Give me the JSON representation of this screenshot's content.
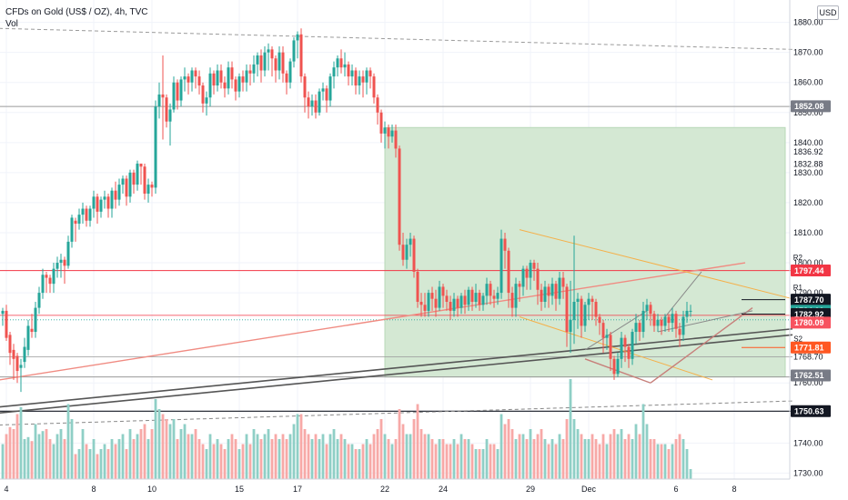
{
  "header": {
    "title": "CFDs on Gold (US$ / OZ), 4h, TVC",
    "indicator": "Vol",
    "currency": "USD"
  },
  "chart_data": {
    "type": "candlestick",
    "y_range": [
      1728,
      1882
    ],
    "volume_max": 100,
    "y_ticks": [
      1730,
      1740,
      1760,
      1790,
      1800,
      1810,
      1820,
      1830,
      1840,
      1850,
      1860,
      1870,
      1880
    ],
    "x_ticks": [
      {
        "label": "4",
        "i": 1
      },
      {
        "label": "8",
        "i": 25
      },
      {
        "label": "10",
        "i": 41
      },
      {
        "label": "15",
        "i": 65
      },
      {
        "label": "17",
        "i": 81
      },
      {
        "label": "22",
        "i": 105
      },
      {
        "label": "24",
        "i": 121
      },
      {
        "label": "29",
        "i": 145
      },
      {
        "label": "Dec",
        "i": 161
      },
      {
        "label": "6",
        "i": 185
      },
      {
        "label": "8",
        "i": 201
      }
    ],
    "candles": [
      [
        1783,
        1784,
        1779,
        1785,
        35
      ],
      [
        1784,
        1775,
        1774,
        1786,
        45
      ],
      [
        1776,
        1770,
        1766,
        1777,
        52
      ],
      [
        1771,
        1768,
        1761,
        1773,
        50
      ],
      [
        1769,
        1764,
        1760,
        1770,
        65
      ],
      [
        1765,
        1766,
        1757,
        1768,
        72
      ],
      [
        1767,
        1772,
        1765,
        1775,
        40
      ],
      [
        1771,
        1779,
        1769,
        1781,
        42
      ],
      [
        1778,
        1777,
        1775,
        1783,
        38
      ],
      [
        1777,
        1785,
        1775,
        1787,
        55
      ],
      [
        1785,
        1790,
        1783,
        1792,
        45
      ],
      [
        1790,
        1796,
        1788,
        1798,
        48
      ],
      [
        1796,
        1795,
        1790,
        1797,
        50
      ],
      [
        1795,
        1793,
        1790,
        1796,
        40
      ],
      [
        1793,
        1798,
        1790,
        1800,
        35
      ],
      [
        1798,
        1800,
        1795,
        1802,
        45
      ],
      [
        1800,
        1801,
        1795,
        1803,
        50
      ],
      [
        1801,
        1799,
        1793,
        1802,
        40
      ],
      [
        1799,
        1807,
        1798,
        1809,
        75
      ],
      [
        1807,
        1815,
        1805,
        1816,
        60
      ],
      [
        1814,
        1813,
        1807,
        1815,
        25
      ],
      [
        1813,
        1816,
        1811,
        1818,
        30
      ],
      [
        1816,
        1818,
        1813,
        1820,
        50
      ],
      [
        1818,
        1814,
        1812,
        1819,
        35
      ],
      [
        1814,
        1818,
        1812,
        1819,
        30
      ],
      [
        1818,
        1822,
        1815,
        1824,
        40
      ],
      [
        1822,
        1817,
        1813,
        1823,
        25
      ],
      [
        1817,
        1821,
        1815,
        1822,
        30
      ],
      [
        1821,
        1822,
        1818,
        1824,
        35
      ],
      [
        1822,
        1818,
        1815,
        1823,
        30
      ],
      [
        1818,
        1824,
        1815,
        1825,
        40
      ],
      [
        1824,
        1821,
        1818,
        1827,
        35
      ],
      [
        1821,
        1826,
        1819,
        1828,
        40
      ],
      [
        1826,
        1828,
        1823,
        1829,
        45
      ],
      [
        1828,
        1822,
        1819,
        1829,
        30
      ],
      [
        1822,
        1830,
        1820,
        1831,
        50
      ],
      [
        1830,
        1826,
        1823,
        1831,
        40
      ],
      [
        1826,
        1833,
        1824,
        1834,
        45
      ],
      [
        1833,
        1832,
        1826,
        1833,
        50
      ],
      [
        1832,
        1823,
        1821,
        1833,
        55
      ],
      [
        1823,
        1826,
        1820,
        1828,
        40
      ],
      [
        1826,
        1825,
        1822,
        1827,
        50
      ],
      [
        1825,
        1852,
        1823,
        1854,
        80
      ],
      [
        1852,
        1856,
        1848,
        1860,
        70
      ],
      [
        1856,
        1855,
        1841,
        1869,
        65
      ],
      [
        1855,
        1847,
        1845,
        1856,
        60
      ],
      [
        1847,
        1851,
        1839,
        1853,
        55
      ],
      [
        1851,
        1860,
        1850,
        1862,
        60
      ],
      [
        1860,
        1854,
        1851,
        1861,
        40
      ],
      [
        1854,
        1861,
        1852,
        1862,
        50
      ],
      [
        1861,
        1862,
        1857,
        1865,
        55
      ],
      [
        1862,
        1860,
        1856,
        1863,
        45
      ],
      [
        1860,
        1864,
        1857,
        1865,
        45
      ],
      [
        1864,
        1862,
        1858,
        1865,
        50
      ],
      [
        1862,
        1859,
        1856,
        1864,
        40
      ],
      [
        1859,
        1853,
        1850,
        1860,
        35
      ],
      [
        1853,
        1855,
        1849,
        1857,
        30
      ],
      [
        1855,
        1863,
        1852,
        1865,
        45
      ],
      [
        1863,
        1859,
        1856,
        1864,
        35
      ],
      [
        1859,
        1864,
        1857,
        1866,
        40
      ],
      [
        1864,
        1860,
        1858,
        1866,
        35
      ],
      [
        1860,
        1858,
        1855,
        1862,
        30
      ],
      [
        1858,
        1865,
        1856,
        1867,
        40
      ],
      [
        1865,
        1861,
        1858,
        1867,
        45
      ],
      [
        1861,
        1857,
        1854,
        1862,
        40
      ],
      [
        1857,
        1862,
        1855,
        1863,
        30
      ],
      [
        1862,
        1860,
        1857,
        1864,
        35
      ],
      [
        1860,
        1864,
        1857,
        1866,
        45
      ],
      [
        1864,
        1863,
        1859,
        1866,
        35
      ],
      [
        1863,
        1866,
        1860,
        1869,
        50
      ],
      [
        1866,
        1869,
        1862,
        1870,
        45
      ],
      [
        1869,
        1864,
        1860,
        1871,
        40
      ],
      [
        1864,
        1870,
        1862,
        1872,
        45
      ],
      [
        1870,
        1871,
        1864,
        1873,
        50
      ],
      [
        1871,
        1868,
        1862,
        1872,
        40
      ],
      [
        1868,
        1864,
        1860,
        1869,
        45
      ],
      [
        1864,
        1870,
        1861,
        1872,
        40
      ],
      [
        1870,
        1863,
        1860,
        1872,
        45
      ],
      [
        1863,
        1860,
        1856,
        1864,
        40
      ],
      [
        1860,
        1867,
        1858,
        1868,
        45
      ],
      [
        1867,
        1874,
        1865,
        1875,
        55
      ],
      [
        1874,
        1876,
        1868,
        1877,
        65
      ],
      [
        1876,
        1862,
        1860,
        1878,
        65
      ],
      [
        1862,
        1855,
        1850,
        1863,
        50
      ],
      [
        1855,
        1852,
        1848,
        1857,
        45
      ],
      [
        1852,
        1854,
        1849,
        1856,
        40
      ],
      [
        1854,
        1850,
        1848,
        1856,
        45
      ],
      [
        1850,
        1857,
        1849,
        1858,
        40
      ],
      [
        1857,
        1858,
        1854,
        1860,
        45
      ],
      [
        1858,
        1854,
        1850,
        1859,
        35
      ],
      [
        1854,
        1862,
        1852,
        1863,
        45
      ],
      [
        1862,
        1865,
        1858,
        1867,
        50
      ],
      [
        1865,
        1868,
        1862,
        1869,
        40
      ],
      [
        1868,
        1865,
        1863,
        1871,
        45
      ],
      [
        1865,
        1866,
        1862,
        1870,
        40
      ],
      [
        1866,
        1862,
        1859,
        1867,
        35
      ],
      [
        1862,
        1864,
        1859,
        1866,
        35
      ],
      [
        1864,
        1859,
        1856,
        1865,
        30
      ],
      [
        1859,
        1862,
        1856,
        1864,
        30
      ],
      [
        1862,
        1860,
        1855,
        1864,
        35
      ],
      [
        1860,
        1864,
        1856,
        1865,
        40
      ],
      [
        1864,
        1862,
        1858,
        1865,
        35
      ],
      [
        1862,
        1855,
        1853,
        1863,
        45
      ],
      [
        1855,
        1850,
        1846,
        1856,
        50
      ],
      [
        1850,
        1843,
        1840,
        1851,
        60
      ],
      [
        1843,
        1845,
        1838,
        1847,
        45
      ],
      [
        1845,
        1842,
        1838,
        1846,
        40
      ],
      [
        1842,
        1844,
        1840,
        1846,
        35
      ],
      [
        1844,
        1838,
        1835,
        1846,
        40
      ],
      [
        1838,
        1806,
        1804,
        1839,
        70
      ],
      [
        1806,
        1801,
        1799,
        1810,
        55
      ],
      [
        1801,
        1806,
        1798,
        1808,
        45
      ],
      [
        1806,
        1808,
        1802,
        1810,
        45
      ],
      [
        1808,
        1797,
        1795,
        1809,
        60
      ],
      [
        1797,
        1787,
        1785,
        1798,
        75
      ],
      [
        1787,
        1786,
        1782,
        1790,
        50
      ],
      [
        1786,
        1784,
        1782,
        1790,
        45
      ],
      [
        1784,
        1790,
        1782,
        1791,
        45
      ],
      [
        1790,
        1788,
        1784,
        1792,
        40
      ],
      [
        1788,
        1785,
        1782,
        1791,
        35
      ],
      [
        1785,
        1792,
        1784,
        1794,
        40
      ],
      [
        1792,
        1789,
        1785,
        1793,
        40
      ],
      [
        1789,
        1787,
        1784,
        1791,
        35
      ],
      [
        1787,
        1784,
        1781,
        1789,
        35
      ],
      [
        1784,
        1788,
        1782,
        1790,
        40
      ],
      [
        1788,
        1785,
        1782,
        1789,
        35
      ],
      [
        1785,
        1789,
        1783,
        1790,
        45
      ],
      [
        1789,
        1786,
        1783,
        1791,
        40
      ],
      [
        1786,
        1791,
        1784,
        1792,
        40
      ],
      [
        1791,
        1787,
        1784,
        1792,
        35
      ],
      [
        1787,
        1790,
        1785,
        1793,
        30
      ],
      [
        1790,
        1786,
        1784,
        1791,
        30
      ],
      [
        1786,
        1789,
        1784,
        1790,
        30
      ],
      [
        1789,
        1793,
        1786,
        1795,
        40
      ],
      [
        1793,
        1789,
        1786,
        1794,
        35
      ],
      [
        1789,
        1788,
        1785,
        1791,
        35
      ],
      [
        1788,
        1790,
        1786,
        1792,
        30
      ],
      [
        1790,
        1808,
        1788,
        1811,
        65
      ],
      [
        1808,
        1804,
        1798,
        1810,
        55
      ],
      [
        1804,
        1790,
        1785,
        1805,
        60
      ],
      [
        1790,
        1785,
        1782,
        1792,
        50
      ],
      [
        1785,
        1793,
        1782,
        1795,
        40
      ],
      [
        1793,
        1792,
        1787,
        1794,
        45
      ],
      [
        1792,
        1798,
        1789,
        1799,
        45
      ],
      [
        1798,
        1795,
        1791,
        1799,
        40
      ],
      [
        1795,
        1800,
        1791,
        1801,
        50
      ],
      [
        1800,
        1798,
        1794,
        1801,
        40
      ],
      [
        1798,
        1791,
        1786,
        1800,
        45
      ],
      [
        1791,
        1787,
        1784,
        1793,
        50
      ],
      [
        1787,
        1792,
        1785,
        1794,
        40
      ],
      [
        1792,
        1789,
        1785,
        1793,
        35
      ],
      [
        1789,
        1793,
        1786,
        1795,
        40
      ],
      [
        1793,
        1788,
        1784,
        1794,
        35
      ],
      [
        1788,
        1795,
        1786,
        1797,
        45
      ],
      [
        1795,
        1792,
        1788,
        1797,
        40
      ],
      [
        1792,
        1777,
        1772,
        1793,
        60
      ],
      [
        1777,
        1781,
        1770,
        1794,
        100
      ],
      [
        1781,
        1787,
        1773,
        1809,
        60
      ],
      [
        1787,
        1788,
        1778,
        1790,
        50
      ],
      [
        1788,
        1779,
        1775,
        1789,
        45
      ],
      [
        1779,
        1786,
        1777,
        1787,
        40
      ],
      [
        1786,
        1788,
        1781,
        1790,
        40
      ],
      [
        1788,
        1787,
        1781,
        1789,
        45
      ],
      [
        1787,
        1782,
        1779,
        1788,
        40
      ],
      [
        1782,
        1780,
        1776,
        1783,
        35
      ],
      [
        1780,
        1775,
        1770,
        1781,
        45
      ],
      [
        1775,
        1776,
        1771,
        1778,
        35
      ],
      [
        1776,
        1768,
        1764,
        1777,
        45
      ],
      [
        1768,
        1763,
        1761,
        1769,
        50
      ],
      [
        1763,
        1768,
        1762,
        1770,
        45
      ],
      [
        1768,
        1775,
        1765,
        1777,
        50
      ],
      [
        1775,
        1772,
        1767,
        1776,
        40
      ],
      [
        1772,
        1768,
        1765,
        1773,
        45
      ],
      [
        1768,
        1777,
        1766,
        1778,
        40
      ],
      [
        1777,
        1780,
        1773,
        1783,
        55
      ],
      [
        1780,
        1777,
        1774,
        1781,
        45
      ],
      [
        1777,
        1784,
        1775,
        1787,
        75
      ],
      [
        1784,
        1786,
        1781,
        1788,
        55
      ],
      [
        1786,
        1783,
        1779,
        1787,
        40
      ],
      [
        1783,
        1779,
        1777,
        1784,
        40
      ],
      [
        1779,
        1781,
        1777,
        1783,
        35
      ],
      [
        1781,
        1779,
        1776,
        1782,
        35
      ],
      [
        1779,
        1782,
        1777,
        1783,
        35
      ],
      [
        1782,
        1780,
        1777,
        1783,
        30
      ],
      [
        1780,
        1783,
        1777,
        1785,
        35
      ],
      [
        1783,
        1778,
        1775,
        1784,
        40
      ],
      [
        1778,
        1776,
        1772,
        1780,
        45
      ],
      [
        1776,
        1782,
        1774,
        1784,
        40
      ],
      [
        1782,
        1784,
        1780,
        1787,
        30
      ],
      [
        1784,
        1784,
        1782,
        1786,
        10
      ]
    ],
    "price_labels": [
      {
        "value": "1852.08",
        "price": 1852.08,
        "color": "#787b86"
      },
      {
        "value": "1797.44",
        "price": 1797.44,
        "color": "#f23645"
      },
      {
        "value": "1787.70",
        "price": 1787.7,
        "color": "#131722"
      },
      {
        "value": "1784.00",
        "price": 1784.0,
        "color": "#26a69a"
      },
      {
        "value": "1782.92",
        "price": 1782.92,
        "color": "#131722"
      },
      {
        "value": "1780.09",
        "price": 1780.09,
        "color": "#f7525f"
      },
      {
        "value": "1771.81",
        "price": 1771.81,
        "color": "#ff5722"
      },
      {
        "value": "1762.51",
        "price": 1762.51,
        "color": "#787b86"
      },
      {
        "value": "1750.63",
        "price": 1750.63,
        "color": "#131722"
      }
    ],
    "axis_extra_texts": [
      {
        "value": "1836.92",
        "price": 1836.92
      },
      {
        "value": "1832.88",
        "price": 1832.88
      },
      {
        "value": "1768.70",
        "price": 1768.7
      }
    ],
    "level_labels": [
      {
        "label": "R2",
        "price": 1800
      },
      {
        "label": "R1",
        "price": 1790
      },
      {
        "label": "S1",
        "price": 1782
      },
      {
        "label": "S2",
        "price": 1773
      }
    ],
    "colors": {
      "up": "#26a69a",
      "down": "#ef5350",
      "vol_up": "#8fcfc6",
      "vol_down": "#f7a9a7"
    }
  }
}
